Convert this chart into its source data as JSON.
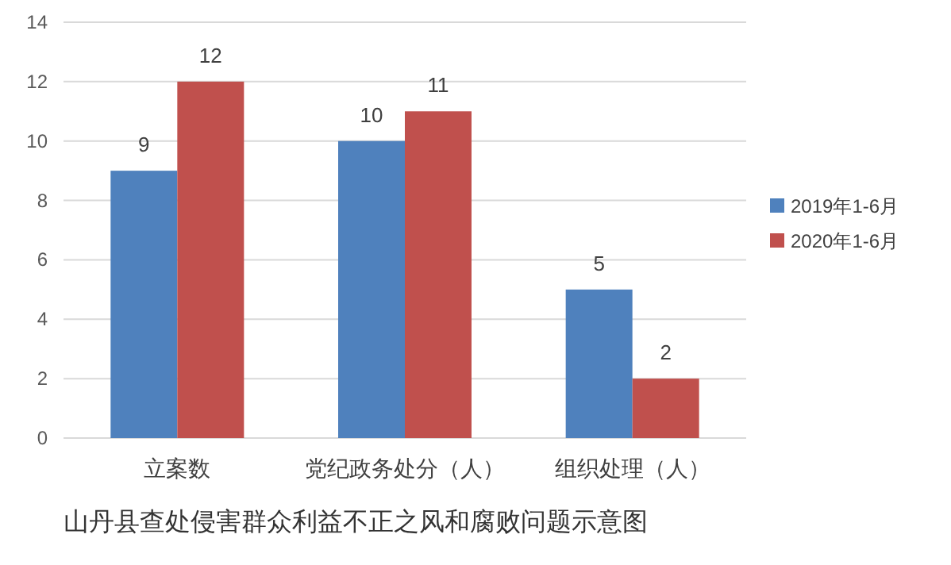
{
  "chart_data": {
    "type": "bar",
    "categories": [
      "立案数",
      "党纪政务处分（人）",
      "组织处理（人）"
    ],
    "series": [
      {
        "name": "2019年1-6月",
        "color": "#4f81bd",
        "values": [
          9,
          10,
          5
        ]
      },
      {
        "name": "2020年1-6月",
        "color": "#c0504d",
        "values": [
          12,
          11,
          2
        ]
      }
    ],
    "ylim": [
      0,
      14
    ],
    "yticks": [
      0,
      2,
      4,
      6,
      8,
      10,
      12,
      14
    ],
    "grid": "y",
    "legend": "right",
    "data_labels": true,
    "annotations": [
      "山丹县查处侵害群众利益不正之风和腐败问题示意图"
    ]
  }
}
